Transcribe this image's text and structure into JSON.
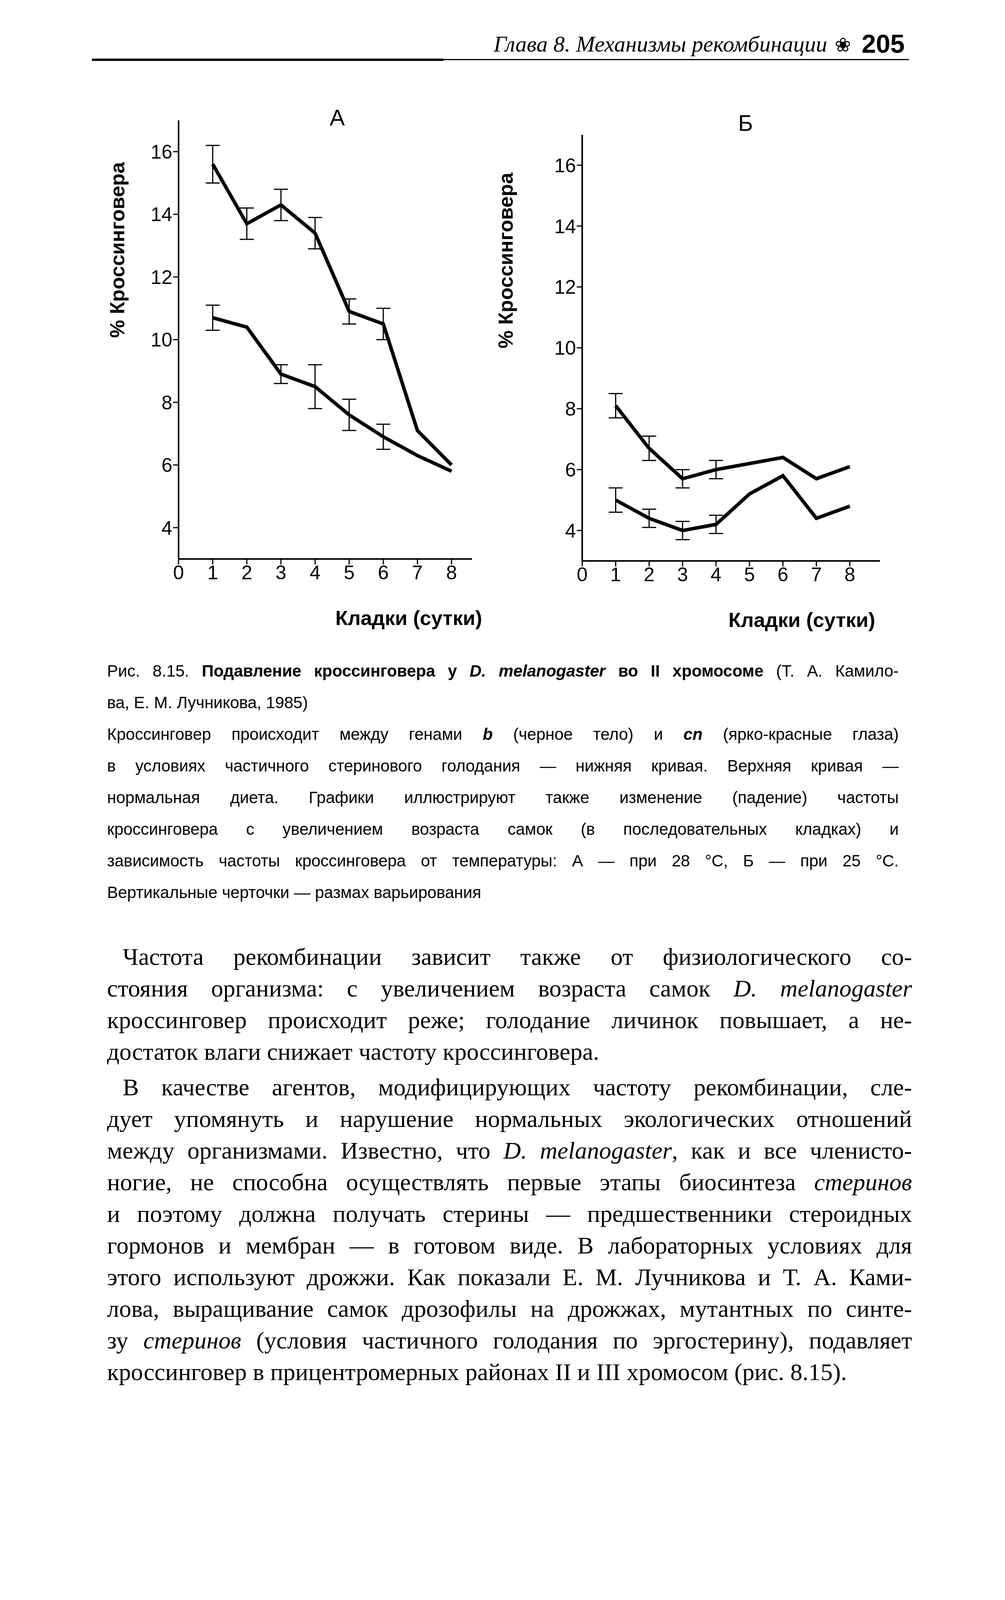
{
  "header": {
    "title": "Глава 8. Механизмы рекомбинации",
    "ornament": "❀",
    "page": 205
  },
  "chart_data": [
    {
      "type": "line",
      "title": "А",
      "x_label": "Кладки (сутки)",
      "y_label": "% Кроссинговера",
      "x": [
        1,
        2,
        3,
        4,
        5,
        6,
        7,
        8
      ],
      "xlim": [
        0,
        8.6
      ],
      "xticks": [
        0,
        1,
        2,
        3,
        4,
        5,
        6,
        7,
        8
      ],
      "ylim": [
        3,
        17
      ],
      "yticks": [
        4,
        6,
        8,
        10,
        12,
        14,
        16
      ],
      "grid": false,
      "series": [
        {
          "color": "#000000",
          "line_style": "solid",
          "values": [
            15.6,
            13.7,
            14.3,
            13.4,
            10.9,
            10.5,
            7.1,
            6.0
          ],
          "errors": [
            0.6,
            0.5,
            0.5,
            0.5,
            0.4,
            0.5,
            null,
            null
          ]
        },
        {
          "color": "#000000",
          "line_style": "solid",
          "values": [
            10.7,
            10.4,
            8.9,
            8.5,
            7.6,
            6.9,
            6.3,
            5.8
          ],
          "errors": [
            0.4,
            null,
            0.3,
            0.7,
            0.5,
            0.4,
            null,
            null
          ]
        }
      ]
    },
    {
      "type": "line",
      "title": "Б",
      "x_label": "Кладки (сутки)",
      "y_label": "% Кроссинговера",
      "x": [
        1,
        2,
        3,
        4,
        5,
        6,
        7,
        8
      ],
      "xlim": [
        0,
        8.9
      ],
      "xticks": [
        0,
        1,
        2,
        3,
        4,
        5,
        6,
        7,
        8
      ],
      "ylim": [
        3,
        17
      ],
      "yticks": [
        4,
        6,
        8,
        10,
        12,
        14,
        16
      ],
      "grid": false,
      "series": [
        {
          "color": "#000000",
          "line_style": "solid",
          "values": [
            8.1,
            6.7,
            5.7,
            6.0,
            6.2,
            6.4,
            5.7,
            6.1
          ],
          "errors": [
            0.4,
            0.4,
            0.3,
            0.3,
            null,
            null,
            null,
            null
          ]
        },
        {
          "color": "#000000",
          "line_style": "solid",
          "values": [
            5.0,
            4.4,
            4.0,
            4.2,
            5.2,
            5.8,
            4.4,
            4.8
          ],
          "errors": [
            0.4,
            0.3,
            0.3,
            0.3,
            null,
            null,
            null,
            null
          ]
        }
      ]
    }
  ],
  "caption": {
    "paragraphs": [
      [
        "Рис. 8.15. Подавление кроссинговера у D. melanogaster во II хромосоме (Т. А. Камило-",
        "ва, Е. М. Лучникова, 1985)"
      ],
      [
        "Кроссинговер происходит между генами b (черное тело) и cn (ярко-красные глаза)",
        "в условиях частичного стеринового голодания — нижняя кривая. Верхняя кривая —",
        "нормальная диета. Графики иллюстрируют также изменение (падение) частоты",
        "кроссинговера с увеличением возраста самок (в последовательных кладках) и",
        "зависимость частоты кроссинговера от температуры: А — при 28 °С, Б — при 25 °С.",
        "Вертикальные черточки — размах варьирования"
      ]
    ],
    "bold": [
      "Подавление кроссинговера у D. melanogaster во II хромосоме",
      "b",
      "cn"
    ],
    "italic": [
      "D. melanogaster",
      "b",
      "cn"
    ]
  },
  "body": {
    "paragraphs": [
      [
        "Частота рекомбинации зависит также от физиологического со-",
        "стояния организма: с увеличением возраста самок D. melanogaster",
        "кроссинговер происходит реже; голодание личинок повышает, а не-",
        "достаток влаги снижает частоту кроссинговера."
      ],
      [
        "В качестве агентов, модифицирующих частоту рекомбинации, сле-",
        "дует упомянуть и нарушение нормальных экологических отношений",
        "между организмами. Известно, что D. melanogaster, как и все членисто-",
        "ногие, не способна осуществлять первые этапы биосинтеза стеринов",
        "и поэтому должна получать стерины — предшественники стероидных",
        "гормонов и мембран — в готовом виде. В лабораторных условиях для",
        "этого используют дрожжи. Как показали Е. М. Лучникова и Т. А. Ками-",
        "лова, выращивание самок дрозофилы на дрожжах, мутантных по синте-",
        "зу стеринов (условия частичного голодания по эргостерину), подавляет",
        "кроссинговер в прицентромерных районах II и III хромосом (рис. 8.15)."
      ]
    ],
    "italic": [
      "D. melanogaster",
      "стеринов"
    ]
  }
}
